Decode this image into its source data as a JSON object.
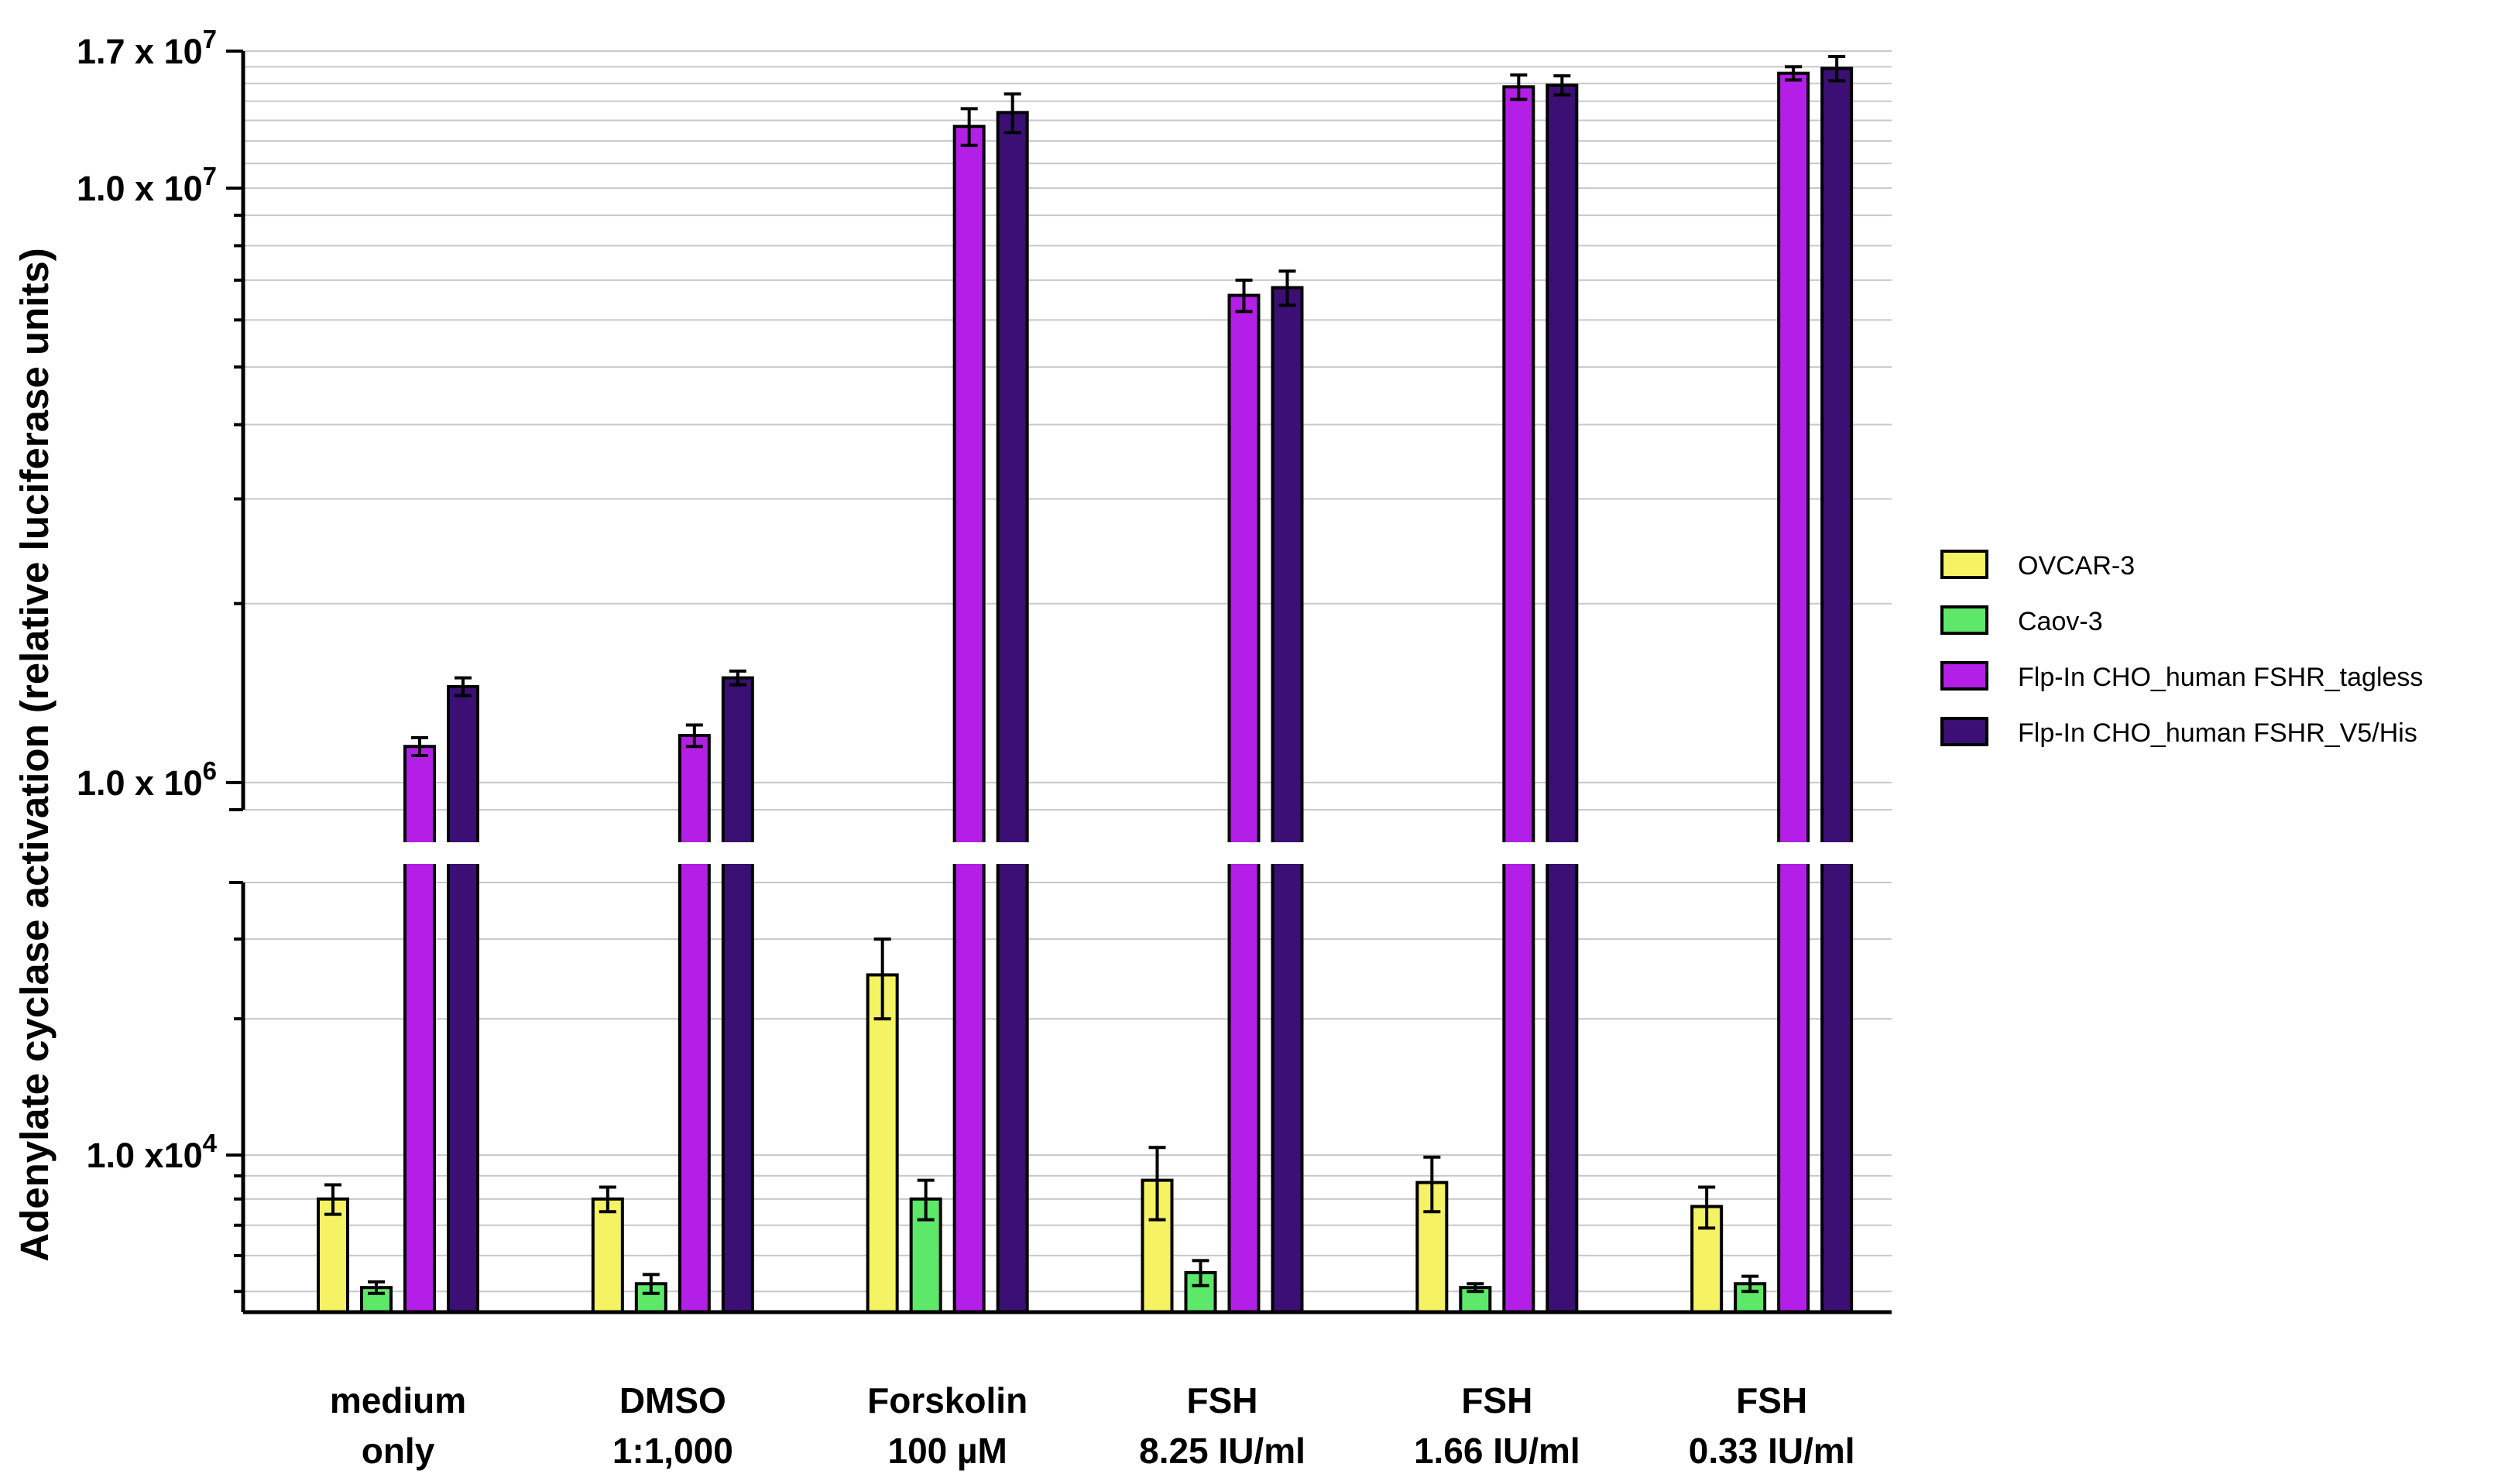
{
  "chart_data": {
    "type": "bar",
    "ylabel": "Adenylate cyclase activation (relative luciferase units)",
    "y_tick_labels": [
      {
        "mantissa": "1.7 x 10",
        "exp": "7",
        "value": 17000000,
        "panel": "upper"
      },
      {
        "mantissa": "1.0 x 10",
        "exp": "7",
        "value": 10000000,
        "panel": "upper"
      },
      {
        "mantissa": "1.0 x 10",
        "exp": "6",
        "value": 1000000,
        "panel": "upper"
      },
      {
        "mantissa": "1.0 x10",
        "exp": "4",
        "value": 10000,
        "panel": "lower"
      }
    ],
    "upper_panel": {
      "ylim": [
        900000,
        17000000
      ]
    },
    "lower_panel": {
      "ylim": [
        4500,
        40000
      ]
    },
    "axis_break": true,
    "categories": [
      {
        "line1": "medium",
        "line2": "only"
      },
      {
        "line1": "DMSO",
        "line2": "1:1,000"
      },
      {
        "line1": "Forskolin",
        "line2": "100 µM"
      },
      {
        "line1": "FSH",
        "line2": "8.25 IU/ml"
      },
      {
        "line1": "FSH",
        "line2": "1.66 IU/ml"
      },
      {
        "line1": "FSH",
        "line2": "0.33 IU/ml"
      }
    ],
    "series": [
      {
        "name": "OVCAR-3",
        "color": "#f5f264",
        "values": [
          8000,
          8000,
          25000,
          8800,
          8700,
          7700
        ],
        "errors": [
          600,
          500,
          5000,
          1600,
          1200,
          800
        ]
      },
      {
        "name": "Caov-3",
        "color": "#5ee86a",
        "values": [
          5100,
          5200,
          8000,
          5500,
          5100,
          5200
        ],
        "errors": [
          150,
          250,
          800,
          350,
          100,
          200
        ]
      },
      {
        "name": "Flp-In CHO_human FSHR_tagless",
        "color": "#b31fe6",
        "values": [
          1150000,
          1200000,
          12700000,
          6600000,
          14800000,
          15600000
        ],
        "errors": [
          40000,
          50000,
          900000,
          400000,
          700000,
          400000
        ],
        "break_visible": true
      },
      {
        "name": "Flp-In CHO_human FSHR_V5/His",
        "color": "#3b0f73",
        "values": [
          1450000,
          1500000,
          13400000,
          6800000,
          14900000,
          15900000
        ],
        "errors": [
          50000,
          40000,
          1000000,
          450000,
          550000,
          750000
        ],
        "break_visible": true
      }
    ],
    "legend_position": "right",
    "grid": true
  }
}
